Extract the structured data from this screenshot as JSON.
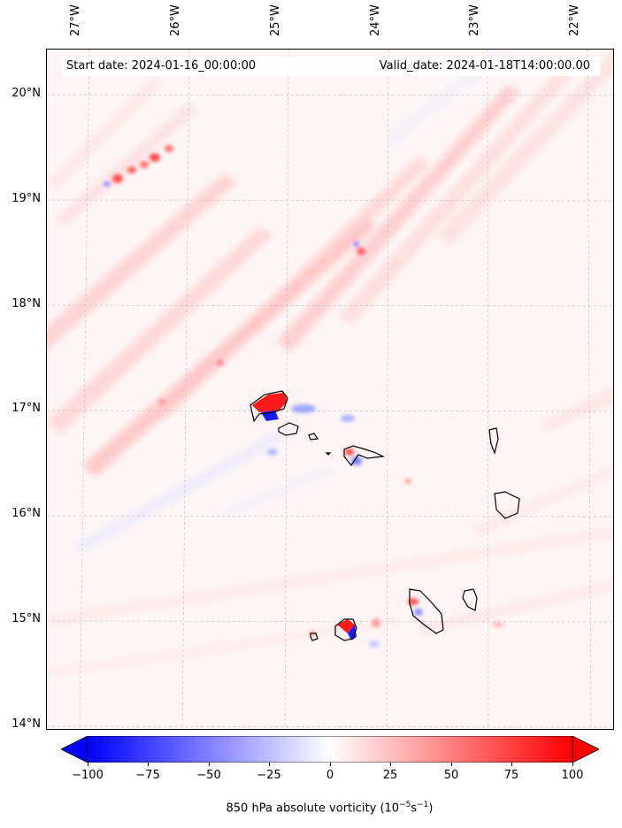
{
  "map": {
    "start_date": "Start date: 2024-01-16_00:00:00",
    "valid_date": "Valid_date: 2024-01-18T14:00:00.00",
    "longitude_labels": [
      "27°W",
      "26°W",
      "25°W",
      "24°W",
      "23°W",
      "22°W"
    ],
    "latitude_labels": [
      "20°N",
      "19°N",
      "18°N",
      "17°N",
      "16°N",
      "15°N",
      "14°N"
    ],
    "extent": {
      "lon_min": -27.35,
      "lon_max": -21.8,
      "lat_min": 13.95,
      "lat_max": 20.4
    },
    "gridlines": true
  },
  "colorbar": {
    "ticks": [
      "−100",
      "−75",
      "−50",
      "−25",
      "0",
      "25",
      "50",
      "75",
      "100"
    ],
    "label_prefix": "850 hPa absolute vorticity (10",
    "label_exp1": "−5",
    "label_mid": "s",
    "label_exp2": "−1",
    "label_suffix": ")",
    "min": -100,
    "max": 100,
    "colormap": "bwr",
    "extend": "both",
    "color_low": "#0000ff",
    "color_mid": "#ffffff",
    "color_high": "#ff0000"
  }
}
